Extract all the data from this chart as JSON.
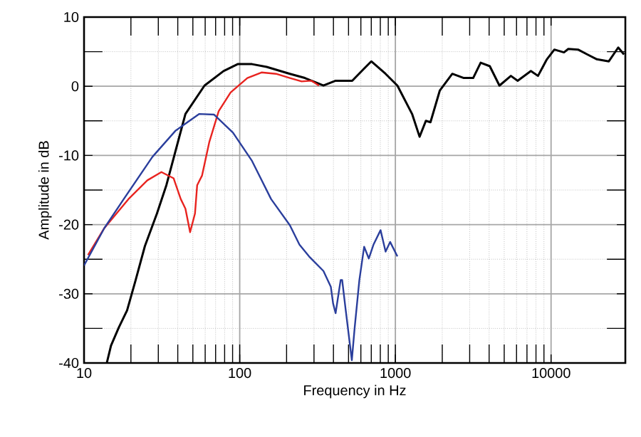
{
  "chart_data": {
    "type": "line",
    "xlabel": "Frequency in Hz",
    "ylabel": "Amplitude in dB",
    "log": "x",
    "grid": true,
    "marker": "none",
    "line_style": "solid",
    "xlim": [
      10,
      30000
    ],
    "ylim": [
      -40,
      10
    ],
    "xticks": [
      10,
      100,
      1000,
      10000
    ],
    "yticks": [
      -40,
      -30,
      -20,
      -10,
      0,
      10
    ],
    "series": [
      {
        "color": "#000000",
        "x": [
          14.0,
          14.9,
          16.7,
          18.9,
          21.4,
          24.6,
          29.4,
          33.8,
          44.8,
          59.4,
          78.7,
          97,
          120,
          149,
          210,
          262,
          345,
          413,
          528,
          700,
          865,
          1030,
          1280,
          1430,
          1570,
          1680,
          1930,
          2320,
          2750,
          3160,
          3530,
          4040,
          4660,
          5520,
          6100,
          7420,
          8240,
          9400,
          10500,
          12100,
          12900,
          14900,
          17100,
          19700,
          23500,
          27000,
          29400
        ],
        "values": [
          -40,
          -37.5,
          -34.9,
          -32.4,
          -28.1,
          -23.1,
          -18.4,
          -14.3,
          -4,
          0.1,
          2.2,
          3.2,
          3.2,
          2.8,
          1.8,
          1.2,
          0.1,
          0.8,
          0.8,
          3.6,
          1.8,
          0.1,
          -4,
          -7.3,
          -5,
          -5.2,
          -0.6,
          1.8,
          1.2,
          1.2,
          3.4,
          2.9,
          0.1,
          1.5,
          0.8,
          2.2,
          1.5,
          3.9,
          5.3,
          4.9,
          5.4,
          5.3,
          4.6,
          3.9,
          3.6,
          5.6,
          4.6
        ]
      },
      {
        "color": "#e8231f",
        "x": [
          10.6,
          13.5,
          19.3,
          25.5,
          31.4,
          37.6,
          41.8,
          44.8,
          48,
          51.6,
          53.3,
          57.3,
          63.7,
          73.3,
          87.4,
          112,
          138,
          171,
          210,
          250,
          289,
          323
        ],
        "values": [
          -24.4,
          -20.5,
          -16.3,
          -13.6,
          -12.4,
          -13.3,
          -16.3,
          -17.7,
          -21.1,
          -18.4,
          -14.3,
          -12.9,
          -8.1,
          -3.6,
          -0.9,
          1.2,
          2,
          1.8,
          1.2,
          0.7,
          0.8,
          0.1
        ]
      },
      {
        "color": "#2a3e9c",
        "x": [
          10,
          13.5,
          18,
          27.5,
          38.8,
          55,
          68.5,
          90.5,
          120,
          159,
          210,
          242,
          279,
          345,
          385,
          398,
          413,
          445,
          455,
          478,
          525,
          547,
          587,
          630,
          675,
          723,
          803,
          865,
          925,
          1030
        ],
        "values": [
          -25.9,
          -20.5,
          -16.3,
          -10.2,
          -6.4,
          -4,
          -4.1,
          -6.7,
          -10.8,
          -16.3,
          -20.1,
          -22.9,
          -24.6,
          -26.7,
          -29,
          -31.4,
          -32.8,
          -28,
          -28,
          -32.1,
          -39.6,
          -35,
          -28,
          -23.2,
          -24.9,
          -22.9,
          -20.8,
          -23.9,
          -22.5,
          -24.6
        ]
      }
    ]
  }
}
